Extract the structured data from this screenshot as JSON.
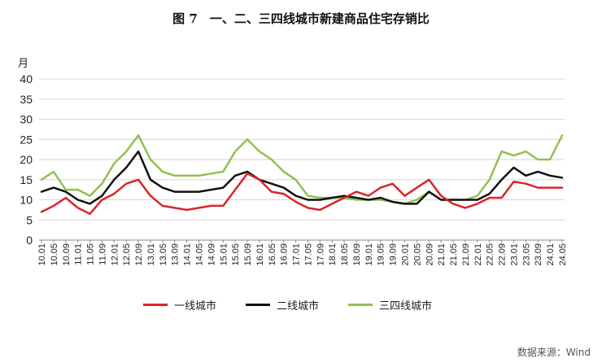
{
  "title": "图 7　一、二、三四线城市新建商品住宅存销比",
  "source": "数据来源：Wind",
  "colors": {
    "tier1": "#d9252b",
    "tier2": "#111111",
    "tier34": "#92c050",
    "grid": "#d6d6d6",
    "axis": "#888888"
  },
  "chart_data": {
    "type": "line",
    "title": "图 7　一、二、三四线城市新建商品住宅存销比",
    "ylabel": "月",
    "xlabel": "",
    "ylim": [
      0,
      40
    ],
    "yticks": [
      0,
      5,
      10,
      15,
      20,
      25,
      30,
      35,
      40
    ],
    "grid": true,
    "legend_position": "bottom",
    "x": [
      "10.01",
      "10.05",
      "10.09",
      "11.01",
      "11.05",
      "11.09",
      "12.01",
      "12.05",
      "12.09",
      "13.01",
      "13.05",
      "13.09",
      "14.01",
      "14.05",
      "14.09",
      "15.01",
      "15.05",
      "15.09",
      "16.01",
      "16.05",
      "16.09",
      "17.01",
      "17.05",
      "17.09",
      "18.01",
      "18.05",
      "18.09",
      "19.01",
      "19.05",
      "19.09",
      "20.01",
      "20.05",
      "20.09",
      "21.01",
      "21.05",
      "21.09",
      "22.01",
      "22.05",
      "22.09",
      "23.01",
      "23.05",
      "23.09",
      "24.01",
      "24.05"
    ],
    "series": [
      {
        "name": "一线城市",
        "color": "#d9252b",
        "values": [
          7,
          8.5,
          10.5,
          8,
          6.5,
          10,
          11.5,
          14,
          15,
          11,
          8.5,
          8,
          7.5,
          8,
          8.5,
          8.5,
          12.5,
          16.5,
          15,
          12,
          11.5,
          9.5,
          8,
          7.5,
          9,
          10.5,
          12,
          11,
          13,
          14,
          11,
          13,
          15,
          11,
          9,
          8,
          9,
          10.5,
          10.5,
          14.5,
          14,
          13,
          13,
          13
        ]
      },
      {
        "name": "二线城市",
        "color": "#111111",
        "values": [
          12,
          13,
          12,
          10,
          9,
          11,
          15,
          18,
          22,
          15,
          13,
          12,
          12,
          12,
          12.5,
          13,
          16,
          17,
          15,
          14,
          13,
          11,
          10,
          10,
          10.5,
          11,
          10.5,
          10,
          10.5,
          9.5,
          9,
          9,
          12,
          10,
          10,
          10,
          10,
          11.5,
          15,
          18,
          16,
          17,
          16,
          15.5
        ]
      },
      {
        "name": "三四线城市",
        "color": "#92c050",
        "values": [
          15,
          17,
          12.5,
          12.5,
          11,
          14,
          19,
          22,
          26,
          20,
          17,
          16,
          16,
          16,
          16.5,
          17,
          22,
          25,
          22,
          20,
          17,
          15,
          11,
          10.5,
          10.5,
          10.5,
          10,
          10,
          10,
          9.5,
          9,
          10,
          12,
          10,
          10,
          10,
          11,
          15,
          22,
          21,
          22,
          20,
          20,
          26
        ]
      }
    ]
  },
  "legend": [
    {
      "label": "一线城市",
      "color": "#d9252b"
    },
    {
      "label": "二线城市",
      "color": "#111111"
    },
    {
      "label": "三四线城市",
      "color": "#92c050"
    }
  ]
}
